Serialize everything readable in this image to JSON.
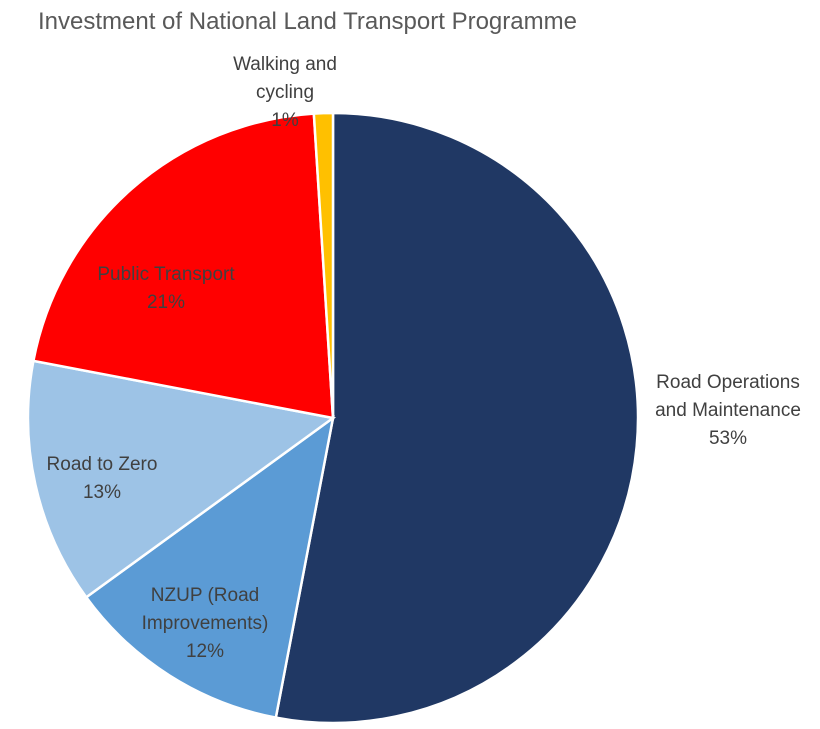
{
  "chart_data": {
    "type": "pie",
    "title": "Investment of National Land Transport Programme",
    "start_angle": "12 o'clock",
    "direction": "clockwise",
    "slices": [
      {
        "label_lines": [
          "Road Operations",
          "and Maintenance"
        ],
        "label": "Road Operations and Maintenance",
        "value": 53,
        "display": "53%",
        "color": "#203864"
      },
      {
        "label_lines": [
          "NZUP (Road",
          "Improvements)"
        ],
        "label": "NZUP (Road Improvements)",
        "value": 12,
        "display": "12%",
        "color": "#5B9BD5"
      },
      {
        "label_lines": [
          "Road to Zero"
        ],
        "label": "Road to Zero",
        "value": 13,
        "display": "13%",
        "color": "#9DC3E6"
      },
      {
        "label_lines": [
          "Public Transport"
        ],
        "label": "Public Transport",
        "value": 21,
        "display": "21%",
        "color": "#FF0000"
      },
      {
        "label_lines": [
          "Walking and",
          "cycling"
        ],
        "label": "Walking and cycling",
        "value": 1,
        "display": "1%",
        "color": "#FFC000"
      }
    ]
  }
}
